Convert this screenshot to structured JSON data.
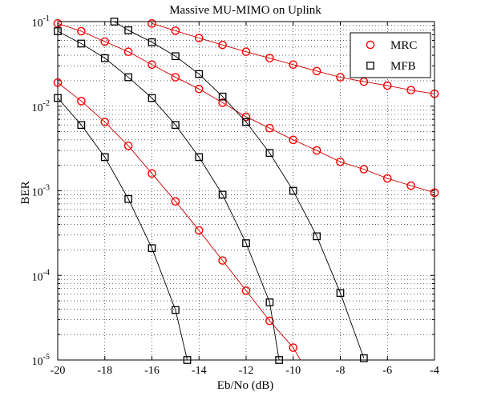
{
  "chart_data": {
    "type": "line",
    "title": "Massive MU-MIMO on Uplink",
    "xlabel": "Eb/No (dB)",
    "ylabel": "BER",
    "xlim": [
      -20,
      -4
    ],
    "ylim": [
      1e-05,
      0.1
    ],
    "yscale": "log",
    "grid": true,
    "legend_position": "top-right",
    "x_ticks": [
      -20,
      -18,
      -16,
      -14,
      -12,
      -10,
      -8,
      -6,
      -4
    ],
    "x_tick_labels": [
      "-20",
      "-18",
      "-16",
      "-14",
      "-12",
      "-10",
      "-8",
      "-6",
      "-4"
    ],
    "y_ticks": [
      {
        "value": 1e-05,
        "base": "10",
        "exp": "-5"
      },
      {
        "value": 0.0001,
        "base": "10",
        "exp": "-4"
      },
      {
        "value": 0.001,
        "base": "10",
        "exp": "-3"
      },
      {
        "value": 0.01,
        "base": "10",
        "exp": "-2"
      },
      {
        "value": 0.1,
        "base": "10",
        "exp": "-1"
      }
    ],
    "legend": [
      {
        "label": "MRC",
        "marker": "circle",
        "color": "#ff0000"
      },
      {
        "label": "MFB",
        "marker": "square",
        "color": "#000000"
      }
    ],
    "series": [
      {
        "group": "MRC",
        "marker": "circle",
        "marker_color": "#ff0000",
        "line_color": "#cc0000",
        "x": [
          -16,
          -15,
          -14,
          -13,
          -12,
          -11,
          -10,
          -9,
          -8,
          -7,
          -6,
          -5,
          -4
        ],
        "y": [
          0.095,
          0.078,
          0.064,
          0.053,
          0.044,
          0.037,
          0.031,
          0.026,
          0.022,
          0.0195,
          0.0175,
          0.0155,
          0.014
        ]
      },
      {
        "group": "MRC",
        "marker": "circle",
        "marker_color": "#ff0000",
        "line_color": "#cc0000",
        "x": [
          -20,
          -19,
          -18,
          -17,
          -16,
          -15,
          -14,
          -13,
          -12,
          -11,
          -10,
          -9,
          -8,
          -7,
          -6,
          -5,
          -4
        ],
        "y": [
          0.095,
          0.077,
          0.058,
          0.044,
          0.031,
          0.022,
          0.016,
          0.011,
          0.0075,
          0.0055,
          0.004,
          0.003,
          0.0022,
          0.0018,
          0.0014,
          0.00115,
          0.00095
        ]
      },
      {
        "group": "MRC",
        "marker": "circle",
        "marker_color": "#ff0000",
        "line_color": "#cc0000",
        "x": [
          -20,
          -19,
          -18,
          -17,
          -16,
          -15,
          -14,
          -13,
          -12,
          -11,
          -10,
          -9.3
        ],
        "y": [
          0.019,
          0.0115,
          0.0065,
          0.0034,
          0.0016,
          0.00075,
          0.00034,
          0.00015,
          6.6e-05,
          2.9e-05,
          1.4e-05,
          6.5e-06
        ]
      },
      {
        "group": "MFB",
        "marker": "square",
        "marker_color": "#000000",
        "line_color": "#000000",
        "x": [
          -17.6,
          -17,
          -16,
          -15,
          -14,
          -13,
          -12,
          -11,
          -10,
          -9,
          -8,
          -7
        ],
        "y": [
          0.1,
          0.079,
          0.057,
          0.039,
          0.024,
          0.013,
          0.0065,
          0.0028,
          0.001,
          0.00029,
          6.2e-05,
          1.05e-05
        ]
      },
      {
        "group": "MFB",
        "marker": "square",
        "marker_color": "#000000",
        "line_color": "#000000",
        "x": [
          -20,
          -19,
          -18,
          -17,
          -16,
          -15,
          -14,
          -13,
          -12,
          -11,
          -10.6
        ],
        "y": [
          0.077,
          0.055,
          0.037,
          0.022,
          0.0125,
          0.006,
          0.0025,
          0.0009,
          0.00024,
          4.8e-05,
          1e-05
        ]
      },
      {
        "group": "MFB",
        "marker": "square",
        "marker_color": "#000000",
        "line_color": "#000000",
        "x": [
          -20,
          -19,
          -18,
          -17,
          -16,
          -15,
          -14.5
        ],
        "y": [
          0.0125,
          0.006,
          0.0025,
          0.0008,
          0.00021,
          3.9e-05,
          1e-05
        ]
      }
    ]
  }
}
